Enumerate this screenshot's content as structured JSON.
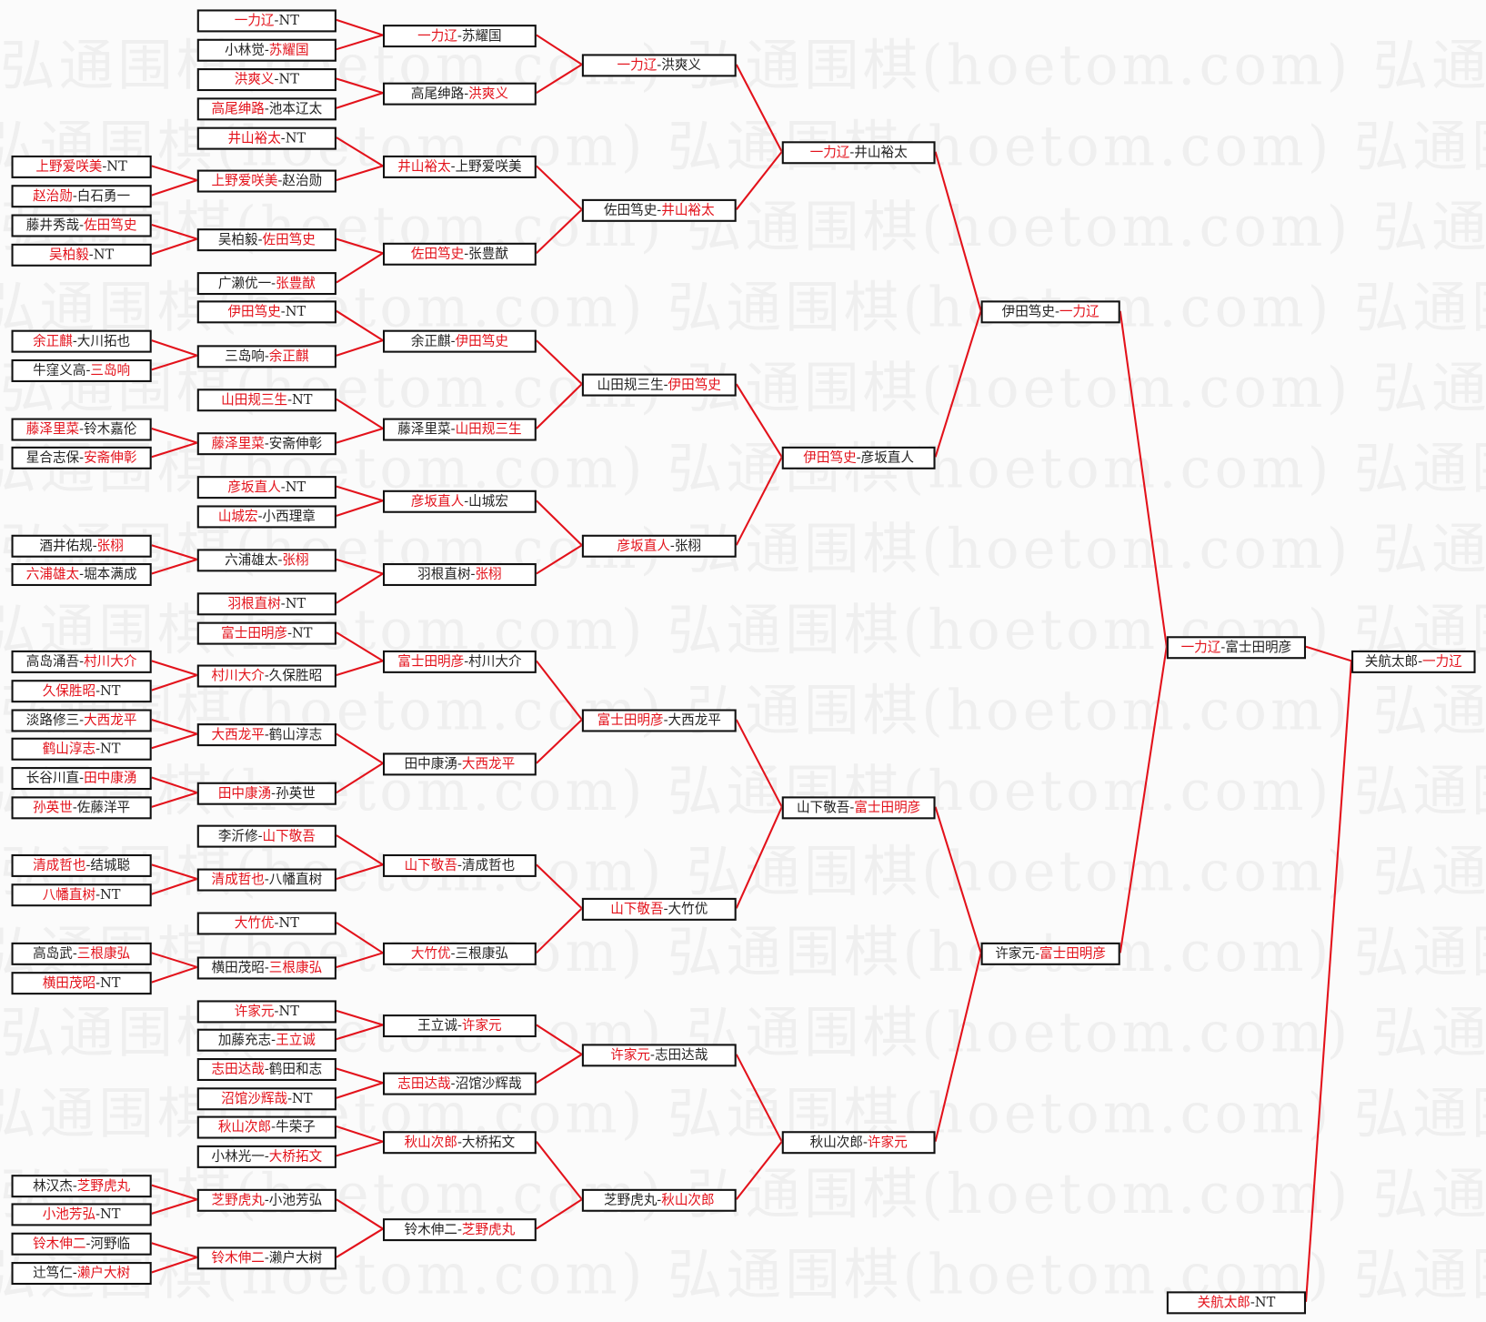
{
  "watermark": "弘通围棋(hoetom.com) 弘通围棋(hoetom.com) 弘通围棋(hoetom.com)",
  "colors": {
    "winner": "#e3121b",
    "line": "#e3121b",
    "border": "#111111"
  },
  "separator": "-",
  "rounds": [
    [
      {
        "a": "上野爱咲美",
        "b": "NT",
        "w": "a"
      },
      {
        "a": "赵治勋",
        "b": "白石勇一",
        "w": "a"
      },
      {
        "a": "藤井秀哉",
        "b": "佐田笃史",
        "w": "b"
      },
      {
        "a": "吴柏毅",
        "b": "NT",
        "w": "a"
      },
      {
        "a": "余正麒",
        "b": "大川拓也",
        "w": "a"
      },
      {
        "a": "牛窪义高",
        "b": "三岛响",
        "w": "b"
      },
      {
        "a": "藤泽里菜",
        "b": "铃木嘉伦",
        "w": "a"
      },
      {
        "a": "星合志保",
        "b": "安斋伸彰",
        "w": "b"
      },
      {
        "a": "酒井佑规",
        "b": "张栩",
        "w": "b"
      },
      {
        "a": "六浦雄太",
        "b": "堀本满成",
        "w": "a"
      },
      {
        "a": "高岛涌吾",
        "b": "村川大介",
        "w": "b"
      },
      {
        "a": "久保胜昭",
        "b": "NT",
        "w": "a"
      },
      {
        "a": "淡路修三",
        "b": "大西龙平",
        "w": "b"
      },
      {
        "a": "鹤山淳志",
        "b": "NT",
        "w": "a"
      },
      {
        "a": "长谷川直",
        "b": "田中康湧",
        "w": "b"
      },
      {
        "a": "孙英世",
        "b": "佐藤洋平",
        "w": "a"
      },
      {
        "a": "清成哲也",
        "b": "结城聪",
        "w": "a"
      },
      {
        "a": "八幡直树",
        "b": "NT",
        "w": "a"
      },
      {
        "a": "高岛武",
        "b": "三根康弘",
        "w": "b"
      },
      {
        "a": "横田茂昭",
        "b": "NT",
        "w": "a"
      },
      {
        "a": "林汉杰",
        "b": "芝野虎丸",
        "w": "b"
      },
      {
        "a": "小池芳弘",
        "b": "NT",
        "w": "a"
      },
      {
        "a": "铃木伸二",
        "b": "河野临",
        "w": "a"
      },
      {
        "a": "辻笃仁",
        "b": "濑户大树",
        "w": "b"
      }
    ],
    [
      {
        "a": "一力辽",
        "b": "NT",
        "w": "a"
      },
      {
        "a": "小林觉",
        "b": "苏耀国",
        "w": "b"
      },
      {
        "a": "洪爽义",
        "b": "NT",
        "w": "a"
      },
      {
        "a": "高尾绅路",
        "b": "池本辽太",
        "w": "a"
      },
      {
        "a": "井山裕太",
        "b": "NT",
        "w": "a"
      },
      {
        "a": "上野爱咲美",
        "b": "赵治勋",
        "w": "a"
      },
      {
        "a": "吴柏毅",
        "b": "佐田笃史",
        "w": "b"
      },
      {
        "a": "广濑优一",
        "b": "张豊猷",
        "w": "b"
      },
      {
        "a": "伊田笃史",
        "b": "NT",
        "w": "a"
      },
      {
        "a": "三岛响",
        "b": "余正麒",
        "w": "b"
      },
      {
        "a": "山田规三生",
        "b": "NT",
        "w": "a"
      },
      {
        "a": "藤泽里菜",
        "b": "安斋伸彰",
        "w": "a"
      },
      {
        "a": "彦坂直人",
        "b": "NT",
        "w": "a"
      },
      {
        "a": "山城宏",
        "b": "小西理章",
        "w": "a"
      },
      {
        "a": "六浦雄太",
        "b": "张栩",
        "w": "b"
      },
      {
        "a": "羽根直树",
        "b": "NT",
        "w": "a"
      },
      {
        "a": "富士田明彦",
        "b": "NT",
        "w": "a"
      },
      {
        "a": "村川大介",
        "b": "久保胜昭",
        "w": "a"
      },
      {
        "a": "大西龙平",
        "b": "鹤山淳志",
        "w": "a"
      },
      {
        "a": "田中康湧",
        "b": "孙英世",
        "w": "a"
      },
      {
        "a": "李沂修",
        "b": "山下敬吾",
        "w": "b"
      },
      {
        "a": "清成哲也",
        "b": "八幡直树",
        "w": "a"
      },
      {
        "a": "大竹优",
        "b": "NT",
        "w": "a"
      },
      {
        "a": "横田茂昭",
        "b": "三根康弘",
        "w": "b"
      },
      {
        "a": "许家元",
        "b": "NT",
        "w": "a"
      },
      {
        "a": "加藤充志",
        "b": "王立诚",
        "w": "b"
      },
      {
        "a": "志田达哉",
        "b": "鹤田和志",
        "w": "a"
      },
      {
        "a": "沼馆沙辉哉",
        "b": "NT",
        "w": "a"
      },
      {
        "a": "秋山次郎",
        "b": "牛荣子",
        "w": "a"
      },
      {
        "a": "小林光一",
        "b": "大桥拓文",
        "w": "b"
      },
      {
        "a": "芝野虎丸",
        "b": "小池芳弘",
        "w": "a"
      },
      {
        "a": "铃木伸二",
        "b": "濑户大树",
        "w": "a"
      }
    ],
    [
      {
        "a": "一力辽",
        "b": "苏耀国",
        "w": "a"
      },
      {
        "a": "高尾绅路",
        "b": "洪爽义",
        "w": "b"
      },
      {
        "a": "井山裕太",
        "b": "上野爱咲美",
        "w": "a"
      },
      {
        "a": "佐田笃史",
        "b": "张豊猷",
        "w": "a"
      },
      {
        "a": "余正麒",
        "b": "伊田笃史",
        "w": "b"
      },
      {
        "a": "藤泽里菜",
        "b": "山田规三生",
        "w": "b"
      },
      {
        "a": "彦坂直人",
        "b": "山城宏",
        "w": "a"
      },
      {
        "a": "羽根直树",
        "b": "张栩",
        "w": "b"
      },
      {
        "a": "富士田明彦",
        "b": "村川大介",
        "w": "a"
      },
      {
        "a": "田中康湧",
        "b": "大西龙平",
        "w": "b"
      },
      {
        "a": "山下敬吾",
        "b": "清成哲也",
        "w": "a"
      },
      {
        "a": "大竹优",
        "b": "三根康弘",
        "w": "a"
      },
      {
        "a": "王立诚",
        "b": "许家元",
        "w": "b"
      },
      {
        "a": "志田达哉",
        "b": "沼馆沙辉哉",
        "w": "a"
      },
      {
        "a": "秋山次郎",
        "b": "大桥拓文",
        "w": "a"
      },
      {
        "a": "铃木伸二",
        "b": "芝野虎丸",
        "w": "b"
      }
    ],
    [
      {
        "a": "一力辽",
        "b": "洪爽义",
        "w": "a"
      },
      {
        "a": "佐田笃史",
        "b": "井山裕太",
        "w": "b"
      },
      {
        "a": "山田规三生",
        "b": "伊田笃史",
        "w": "b"
      },
      {
        "a": "彦坂直人",
        "b": "张栩",
        "w": "a"
      },
      {
        "a": "富士田明彦",
        "b": "大西龙平",
        "w": "a"
      },
      {
        "a": "山下敬吾",
        "b": "大竹优",
        "w": "a"
      },
      {
        "a": "许家元",
        "b": "志田达哉",
        "w": "a"
      },
      {
        "a": "芝野虎丸",
        "b": "秋山次郎",
        "w": "b"
      }
    ],
    [
      {
        "a": "一力辽",
        "b": "井山裕太",
        "w": "a"
      },
      {
        "a": "伊田笃史",
        "b": "彦坂直人",
        "w": "a"
      },
      {
        "a": "山下敬吾",
        "b": "富士田明彦",
        "w": "b"
      },
      {
        "a": "秋山次郎",
        "b": "许家元",
        "w": "b"
      }
    ],
    [
      {
        "a": "伊田笃史",
        "b": "一力辽",
        "w": "b"
      },
      {
        "a": "许家元",
        "b": "富士田明彦",
        "w": "b"
      }
    ],
    [
      {
        "a": "一力辽",
        "b": "富士田明彦",
        "w": "a"
      },
      {
        "a": "关航太郎",
        "b": "NT",
        "w": "a"
      }
    ],
    [
      {
        "a": "关航太郎",
        "b": "一力辽",
        "w": "b"
      }
    ]
  ]
}
